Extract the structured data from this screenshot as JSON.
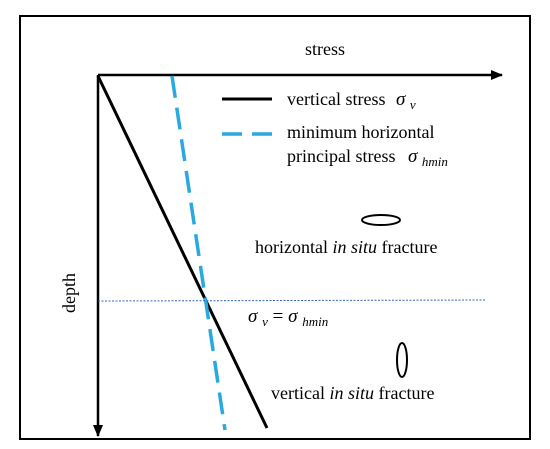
{
  "axes": {
    "x_label": "stress",
    "y_label": "depth"
  },
  "legend": {
    "vertical": {
      "label": "vertical stress",
      "symbol": "σ",
      "subscript": "v"
    },
    "horizontal": {
      "label_line1": "minimum horizontal",
      "label_line2": "principal stress",
      "symbol": "σ",
      "subscript": "hmin"
    }
  },
  "annotations": {
    "horizontal_fracture": {
      "prefix": "horizontal ",
      "italic": "in situ",
      "suffix": " fracture"
    },
    "vertical_fracture": {
      "prefix": "vertical ",
      "italic": "in situ",
      "suffix": " fracture"
    },
    "equality": {
      "left_symbol": "σ",
      "left_sub": "v",
      "equals": " = ",
      "right_symbol": "σ",
      "right_sub": "hmin"
    }
  },
  "colors": {
    "vertical_stress_line": "#000000",
    "horizontal_stress_line": "#29a9df",
    "crossing_depth_line": "#3465b8",
    "frame": "#000000"
  }
}
